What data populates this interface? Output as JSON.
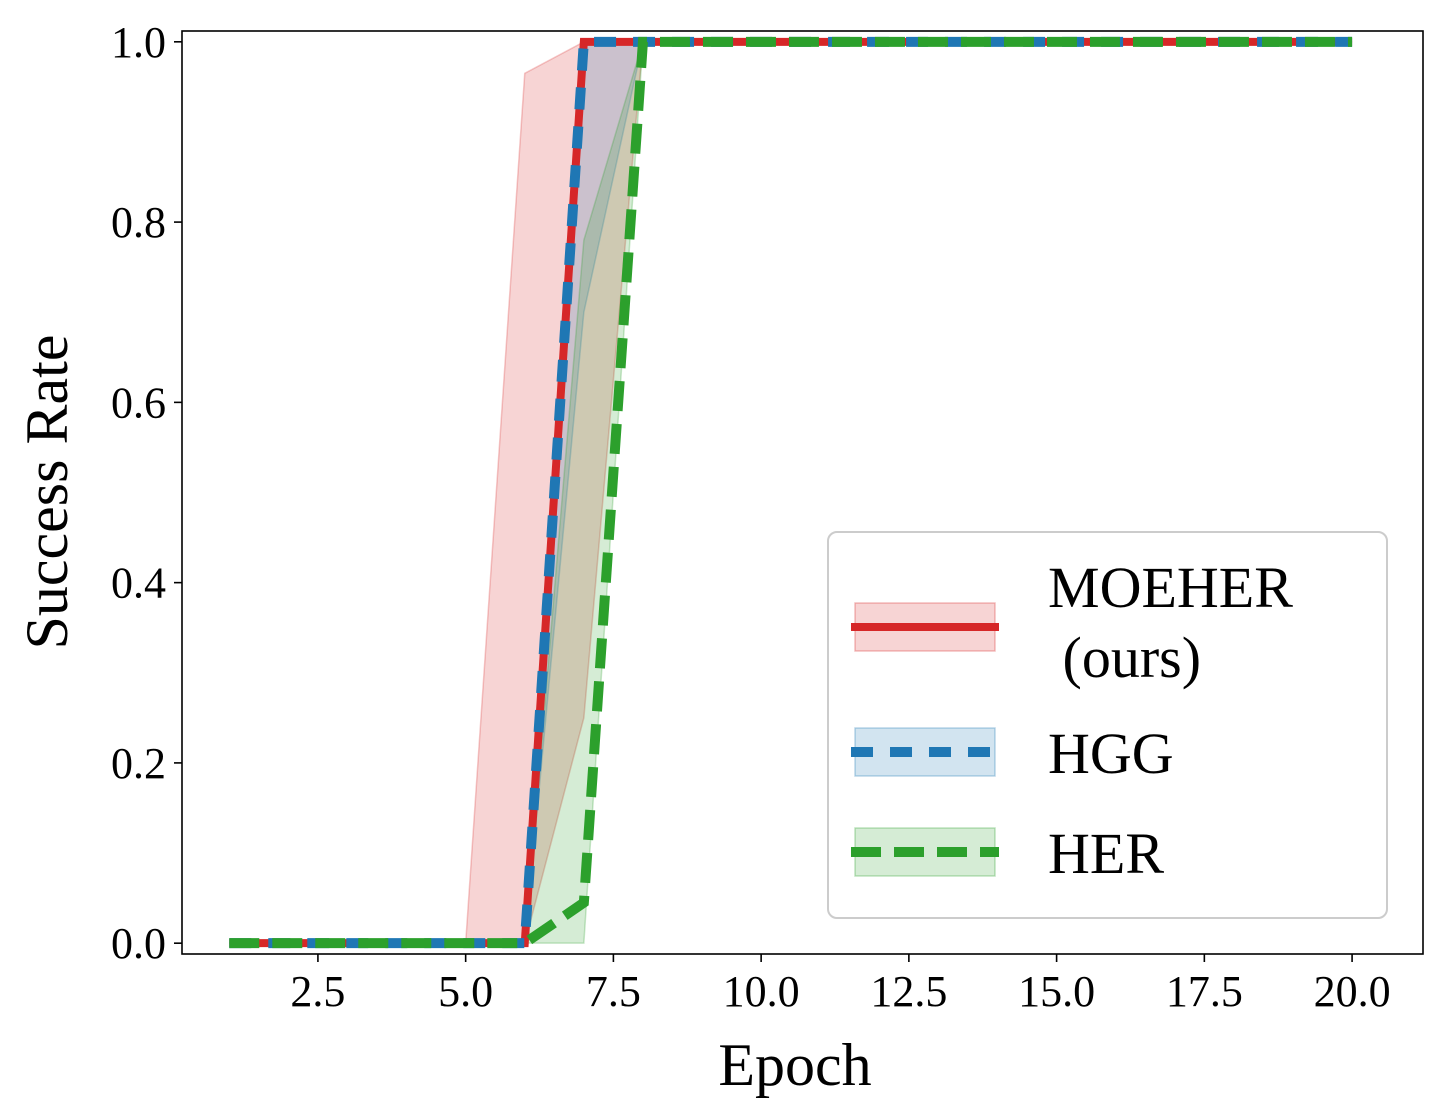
{
  "chart_data": {
    "type": "line",
    "xlabel": "Epoch",
    "ylabel": "Success Rate",
    "xlim": [
      0.2,
      21.2
    ],
    "ylim": [
      -0.012,
      1.012
    ],
    "xticks": [
      2.5,
      5.0,
      7.5,
      10.0,
      12.5,
      15.0,
      17.5,
      20.0
    ],
    "xtick_labels": [
      "2.5",
      "5.0",
      "7.5",
      "10.0",
      "12.5",
      "15.0",
      "17.5",
      "20.0"
    ],
    "yticks": [
      0.0,
      0.2,
      0.4,
      0.6,
      0.8,
      1.0
    ],
    "ytick_labels": [
      "0.0",
      "0.2",
      "0.4",
      "0.6",
      "0.8",
      "1.0"
    ],
    "grid": false,
    "legend_position": "lower-right",
    "x": [
      1,
      2,
      3,
      4,
      5,
      6,
      7,
      8,
      9,
      10,
      11,
      12,
      13,
      14,
      15,
      16,
      17,
      18,
      19,
      20
    ],
    "series": [
      {
        "name": "MOEHER\n (ours)",
        "legend_lines": [
          "MOEHER",
          " (ours)"
        ],
        "color": "#d62728",
        "style": "solid",
        "values": [
          0,
          0,
          0,
          0,
          0,
          0,
          1,
          1,
          1,
          1,
          1,
          1,
          1,
          1,
          1,
          1,
          1,
          1,
          1,
          1
        ],
        "lower": [
          0,
          0,
          0,
          0,
          0,
          0,
          0.25,
          1,
          1,
          1,
          1,
          1,
          1,
          1,
          1,
          1,
          1,
          1,
          1,
          1
        ],
        "upper": [
          0,
          0,
          0,
          0,
          0,
          0.965,
          1,
          1,
          1,
          1,
          1,
          1,
          1,
          1,
          1,
          1,
          1,
          1,
          1,
          1
        ]
      },
      {
        "name": "HGG",
        "legend_lines": [
          "HGG"
        ],
        "color": "#1f77b4",
        "style": "dashed",
        "values": [
          0,
          0,
          0,
          0,
          0,
          0,
          1,
          1,
          1,
          1,
          1,
          1,
          1,
          1,
          1,
          1,
          1,
          1,
          1,
          1
        ],
        "lower": [
          0,
          0,
          0,
          0,
          0,
          0,
          0.7,
          1,
          1,
          1,
          1,
          1,
          1,
          1,
          1,
          1,
          1,
          1,
          1,
          1
        ],
        "upper": [
          0,
          0,
          0,
          0,
          0,
          0,
          1,
          1,
          1,
          1,
          1,
          1,
          1,
          1,
          1,
          1,
          1,
          1,
          1,
          1
        ]
      },
      {
        "name": "HER",
        "legend_lines": [
          "HER"
        ],
        "color": "#2ca02c",
        "style": "dashed",
        "values": [
          0,
          0,
          0,
          0,
          0,
          0,
          0.045,
          1,
          1,
          1,
          1,
          1,
          1,
          1,
          1,
          1,
          1,
          1,
          1,
          1
        ],
        "lower": [
          0,
          0,
          0,
          0,
          0,
          0,
          0,
          1,
          1,
          1,
          1,
          1,
          1,
          1,
          1,
          1,
          1,
          1,
          1,
          1
        ],
        "upper": [
          0,
          0,
          0,
          0,
          0,
          0,
          0.78,
          1,
          1,
          1,
          1,
          1,
          1,
          1,
          1,
          1,
          1,
          1,
          1,
          1
        ]
      }
    ]
  }
}
